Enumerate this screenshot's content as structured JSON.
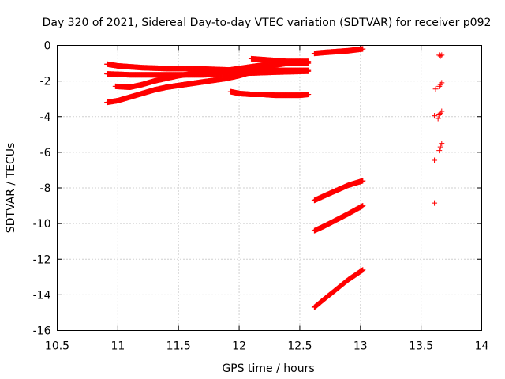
{
  "chart_data": {
    "type": "scatter",
    "title": "Day 320 of 2021, Sidereal Day-to-day VTEC variation (SDTVAR) for receiver p092",
    "xlabel": "GPS time / hours",
    "ylabel": "SDTVAR / TECUs",
    "xlim": [
      10.5,
      14
    ],
    "ylim": [
      -16,
      0
    ],
    "xticks": [
      "10.5",
      "11",
      "11.5",
      "12",
      "12.5",
      "13",
      "13.5",
      "14"
    ],
    "yticks": [
      "0",
      "-2",
      "-4",
      "-6",
      "-8",
      "-10",
      "-12",
      "-14",
      "-16"
    ],
    "grid": true,
    "marker": "plus",
    "color": "#ff0000",
    "tracks": [
      {
        "x": [
          10.91,
          11.0,
          11.2,
          11.4,
          11.6,
          11.8,
          12.0,
          12.2,
          12.4,
          12.57
        ],
        "y": [
          -1.05,
          -1.15,
          -1.25,
          -1.3,
          -1.3,
          -1.35,
          -1.4,
          -1.4,
          -1.4,
          -1.4
        ]
      },
      {
        "x": [
          10.91,
          11.1,
          11.3,
          11.5,
          11.7,
          11.9,
          12.1,
          12.3,
          12.57
        ],
        "y": [
          -1.6,
          -1.65,
          -1.65,
          -1.65,
          -1.65,
          -1.6,
          -1.55,
          -1.5,
          -1.45
        ]
      },
      {
        "x": [
          10.91,
          11.0,
          11.1,
          11.2,
          11.3,
          11.4,
          11.5,
          11.6,
          11.7,
          11.8,
          11.9,
          12.0,
          12.1,
          12.2,
          12.3,
          12.4,
          12.5,
          12.57
        ],
        "y": [
          -3.2,
          -3.1,
          -2.9,
          -2.7,
          -2.5,
          -2.35,
          -2.25,
          -2.15,
          -2.05,
          -1.95,
          -1.85,
          -1.7,
          -1.5,
          -1.3,
          -1.1,
          -1.0,
          -0.95,
          -0.95
        ]
      },
      {
        "x": [
          10.98,
          11.1,
          11.2,
          11.3,
          11.4,
          11.5,
          11.6,
          11.7,
          11.8,
          11.9,
          12.0,
          12.1,
          12.2,
          12.3,
          12.4,
          12.5,
          12.57
        ],
        "y": [
          -2.3,
          -2.35,
          -2.2,
          -2.0,
          -1.85,
          -1.7,
          -1.6,
          -1.5,
          -1.45,
          -1.4,
          -1.3,
          -1.2,
          -1.1,
          -1.05,
          -1.0,
          -1.0,
          -1.0
        ]
      },
      {
        "x": [
          11.93,
          12.0,
          12.1,
          12.2,
          12.3,
          12.4,
          12.5,
          12.57
        ],
        "y": [
          -2.6,
          -2.7,
          -2.75,
          -2.75,
          -2.8,
          -2.8,
          -2.8,
          -2.75
        ]
      },
      {
        "x": [
          12.1,
          12.2,
          12.3,
          12.4,
          12.5,
          12.57
        ],
        "y": [
          -0.75,
          -0.8,
          -0.85,
          -0.9,
          -0.9,
          -0.9
        ]
      },
      {
        "x": [
          12.62,
          12.7,
          12.8,
          12.9,
          13.02
        ],
        "y": [
          -0.45,
          -0.4,
          -0.35,
          -0.3,
          -0.2
        ]
      },
      {
        "x": [
          12.62,
          12.7,
          12.8,
          12.9,
          13.02
        ],
        "y": [
          -8.7,
          -8.45,
          -8.15,
          -7.85,
          -7.6
        ]
      },
      {
        "x": [
          12.62,
          12.7,
          12.8,
          12.9,
          13.02
        ],
        "y": [
          -10.4,
          -10.15,
          -9.8,
          -9.45,
          -9.0
        ]
      },
      {
        "x": [
          12.62,
          12.7,
          12.8,
          12.9,
          13.02
        ],
        "y": [
          -14.7,
          -14.25,
          -13.7,
          -13.15,
          -12.6
        ]
      }
    ],
    "scatter_points": {
      "x": [
        13.65,
        13.66,
        13.67,
        13.62,
        13.65,
        13.66,
        13.67,
        13.61,
        13.64,
        13.65,
        13.66,
        13.67,
        13.65,
        13.66,
        13.67,
        13.61,
        13.61
      ],
      "y": [
        -0.55,
        -0.6,
        -0.55,
        -2.45,
        -2.3,
        -2.2,
        -2.1,
        -3.95,
        -4.1,
        -3.9,
        -3.8,
        -3.7,
        -5.9,
        -5.7,
        -5.5,
        -6.45,
        -8.85
      ]
    }
  }
}
